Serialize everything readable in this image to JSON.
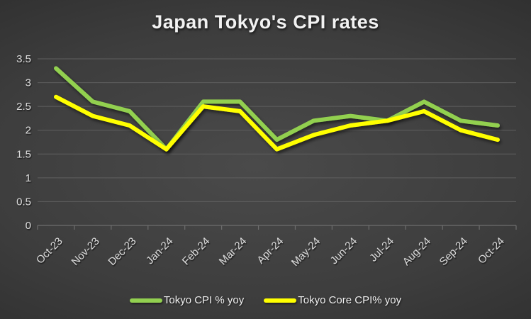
{
  "title": "Japan Tokyo's CPI rates",
  "chart_data": {
    "type": "line",
    "title": "Japan Tokyo's CPI rates",
    "categories": [
      "Oct-23",
      "Nov-23",
      "Dec-23",
      "Jan-24",
      "Feb-24",
      "Mar-24",
      "Apr-24",
      "May-24",
      "Jun-24",
      "Jul-24",
      "Aug-24",
      "Sep-24",
      "Oct-24"
    ],
    "series": [
      {
        "name": "Tokyo CPI % yoy",
        "color": "#92D050",
        "values": [
          3.3,
          2.6,
          2.4,
          1.6,
          2.6,
          2.6,
          1.8,
          2.2,
          2.3,
          2.2,
          2.6,
          2.2,
          2.1
        ]
      },
      {
        "name": "Tokyo Core CPI% yoy",
        "color": "#FFFF00",
        "values": [
          2.7,
          2.3,
          2.1,
          1.6,
          2.5,
          2.4,
          1.6,
          1.9,
          2.1,
          2.2,
          2.4,
          2.0,
          1.8
        ]
      }
    ],
    "xlabel": "",
    "ylabel": "",
    "ylim": [
      0,
      3.5
    ],
    "ytick_step": 0.5,
    "ytick_labels": [
      "0",
      "0.5",
      "1",
      "1.5",
      "2",
      "2.5",
      "3",
      "3.5"
    ],
    "grid": true,
    "legend_position": "bottom"
  },
  "style_colors": {
    "background_center": "#4a4a4a",
    "background_edge": "#232323",
    "gridline": "#5f5f5f",
    "axis_line": "#6e6e6e",
    "axis_label": "#d9d9d9",
    "title_color": "#f2f2f2",
    "legend_text": "#f0f0f0"
  }
}
